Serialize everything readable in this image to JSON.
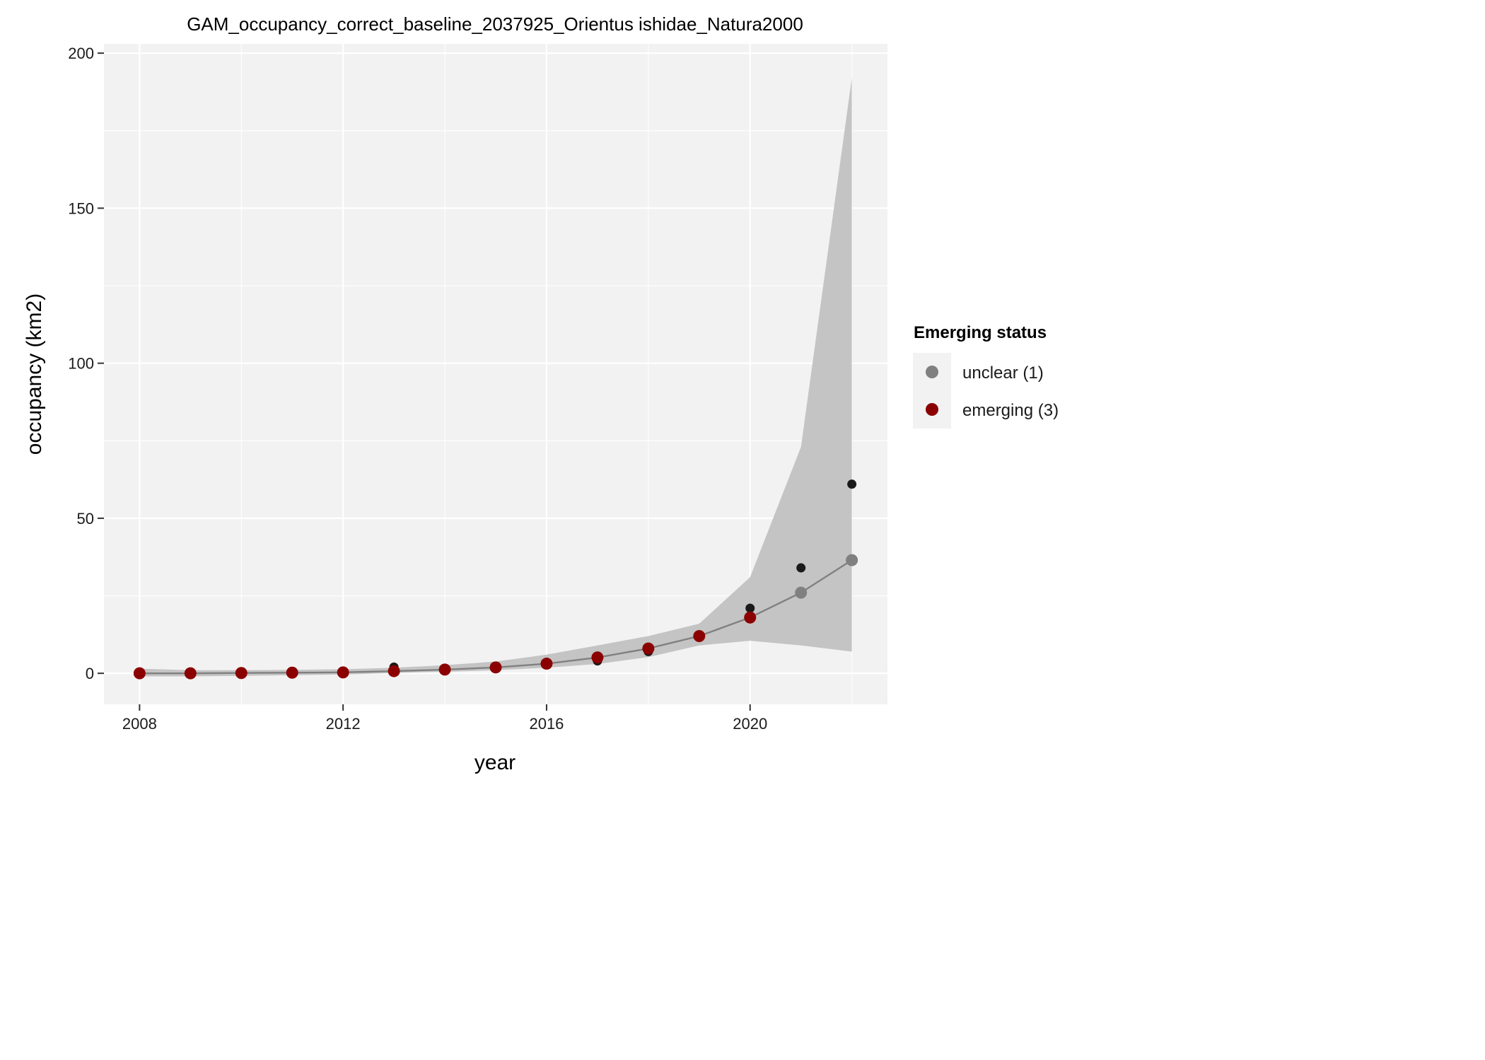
{
  "chart_data": {
    "type": "scatter",
    "title": "GAM_occupancy_correct_baseline_2037925_Orientus ishidae_Natura2000",
    "xlabel": "year",
    "ylabel": "occupancy (km2)",
    "xlim": [
      2007.3,
      2022.7
    ],
    "ylim": [
      -10,
      203
    ],
    "x_ticks": [
      2008,
      2012,
      2016,
      2020
    ],
    "y_ticks": [
      0,
      50,
      100,
      150,
      200
    ],
    "grid": true,
    "legend_position": "right",
    "legend": {
      "title": "Emerging status",
      "entries": [
        {
          "label": "unclear (1)",
          "color": "#808080"
        },
        {
          "label": "emerging (3)",
          "color": "#8b0000"
        }
      ]
    },
    "colors": {
      "panel": "#f2f2f2",
      "grid": "#ffffff",
      "ribbon": "#c4c4c4",
      "fit_line": "#808080",
      "observed": "#1a1a1a"
    },
    "series": [
      {
        "name": "observed",
        "x": [
          2008,
          2009,
          2010,
          2011,
          2012,
          2013,
          2014,
          2015,
          2016,
          2017,
          2018,
          2019,
          2020,
          2021,
          2022
        ],
        "values": [
          0,
          0,
          0,
          0,
          0.2,
          2,
          1,
          2,
          3,
          4,
          7,
          12,
          21,
          34,
          61
        ]
      },
      {
        "name": "fit",
        "x": [
          2008,
          2009,
          2010,
          2011,
          2012,
          2013,
          2014,
          2015,
          2016,
          2017,
          2018,
          2019,
          2020,
          2021,
          2022
        ],
        "values": [
          0,
          0,
          0.1,
          0.2,
          0.3,
          0.7,
          1.2,
          1.9,
          3.1,
          5.1,
          8,
          12,
          18,
          26,
          36.5
        ],
        "lower": [
          -1,
          -1,
          -0.8,
          -0.6,
          -0.4,
          0.1,
          0.5,
          1,
          1.8,
          3,
          5.2,
          9,
          10.5,
          9,
          7
        ],
        "upper": [
          1.5,
          1,
          1,
          1.1,
          1.3,
          1.8,
          2.6,
          3.8,
          6,
          9,
          12,
          16,
          31,
          73,
          192
        ],
        "status": [
          "emerging (3)",
          "emerging (3)",
          "emerging (3)",
          "emerging (3)",
          "emerging (3)",
          "emerging (3)",
          "emerging (3)",
          "emerging (3)",
          "emerging (3)",
          "emerging (3)",
          "emerging (3)",
          "emerging (3)",
          "emerging (3)",
          "unclear (1)",
          "unclear (1)"
        ]
      }
    ]
  }
}
